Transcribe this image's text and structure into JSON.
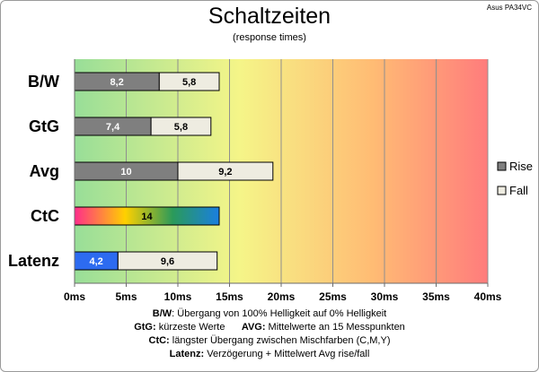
{
  "header": {
    "title": "Schaltzeiten",
    "subtitle": "(response times)",
    "model": "Asus PA34VC"
  },
  "chart_data": {
    "type": "bar",
    "orientation": "horizontal",
    "stacked": true,
    "categories": [
      "B/W",
      "GtG",
      "Avg",
      "CtC",
      "Latenz"
    ],
    "series": [
      {
        "name": "Rise",
        "values": [
          8.2,
          7.4,
          10,
          null,
          4.2
        ],
        "labels": [
          "8,2",
          "7,4",
          "10",
          "",
          "4,2"
        ]
      },
      {
        "name": "Fall",
        "values": [
          5.8,
          5.8,
          9.2,
          null,
          9.6
        ],
        "labels": [
          "5,8",
          "5,8",
          "9,2",
          "",
          "9,6"
        ]
      },
      {
        "values": [
          null,
          null,
          null,
          14,
          null
        ],
        "labels": [
          "",
          "",
          "",
          "14",
          ""
        ]
      }
    ],
    "xlim": [
      0,
      40
    ],
    "xticks": [
      0,
      5,
      10,
      15,
      20,
      25,
      30,
      35,
      40
    ],
    "xtick_labels": [
      "0ms",
      "5ms",
      "10ms",
      "15ms",
      "20ms",
      "25ms",
      "30ms",
      "35ms",
      "40ms"
    ],
    "grid": "vertical",
    "legend": "right",
    "background": "gradient green-yellow-red",
    "colors": {
      "rise": "#7f7f7f",
      "fall": "#eeece1",
      "latenz_rise": "#2d6bf0",
      "ctc_gradient": [
        "#ff2d8a",
        "#ffd000",
        "#2a9a5a",
        "#1a7fe0"
      ],
      "bg_gradient": [
        "#98de98",
        "#f5f588",
        "#ffb070",
        "#ff7c7c"
      ]
    }
  },
  "notes": [
    {
      "key": "B/W",
      "text": ":  Übergang von 100% Helligkeit auf 0% Helligkeit"
    },
    {
      "key": "GtG:",
      "text": " kürzeste  Werte",
      "key2": "AVG:",
      "text2": " Mittelwerte  an 15 Messpunkten"
    },
    {
      "key": "CtC:",
      "text": " längster Übergang  zwischen Mischfarben  (C,M,Y)"
    },
    {
      "key": "Latenz:",
      "text": " Verzögerung  + Mittelwert  Avg rise/fall"
    }
  ]
}
